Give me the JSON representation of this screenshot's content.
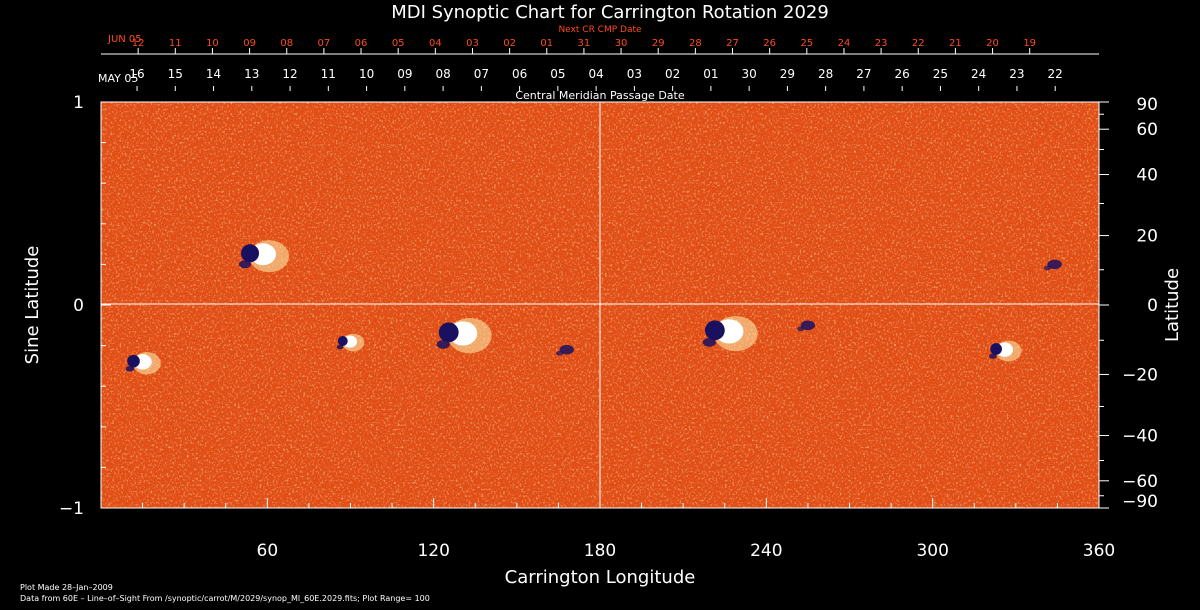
{
  "chart_data": {
    "type": "heatmap",
    "title": "MDI Synoptic Chart for Carrington Rotation 2029",
    "xlabel": "Carrington Longitude",
    "ylabel_left": "Sine Latitude",
    "ylabel_right": "Latitude",
    "xlim": [
      0,
      360
    ],
    "ylim": [
      -1,
      1
    ],
    "x_ticks": [
      60,
      120,
      180,
      240,
      300,
      360
    ],
    "y_left_ticks": [
      {
        "value": 1,
        "label": "1"
      },
      {
        "value": 0,
        "label": "0"
      },
      {
        "value": -1,
        "label": "−1"
      }
    ],
    "y_right_ticks": [
      90,
      60,
      40,
      20,
      0,
      -20,
      -40,
      -60,
      -90
    ],
    "y_right_tick_labels": [
      "90",
      "60",
      "40",
      "20",
      "0",
      "−20",
      "−40",
      "−60",
      "−90"
    ],
    "grid_lines": {
      "longitude": 180,
      "sine_latitude": 0
    },
    "top_axis": {
      "label": "Central Meridian Passage Date",
      "month_label": "MAY 05",
      "dates": [
        "16",
        "15",
        "14",
        "13",
        "12",
        "11",
        "10",
        "09",
        "08",
        "07",
        "06",
        "05",
        "04",
        "03",
        "02",
        "01",
        "30",
        "29",
        "28",
        "27",
        "26",
        "25",
        "24",
        "23",
        "22"
      ],
      "date_start_longitude": 13,
      "date_step": 13.8
    },
    "next_axis": {
      "label": "Next CR CMP Date",
      "month_label": "JUN 05",
      "dates": [
        "12",
        "11",
        "10",
        "09",
        "08",
        "07",
        "06",
        "05",
        "04",
        "03",
        "02",
        "01",
        "31",
        "30",
        "29",
        "28",
        "27",
        "26",
        "25",
        "24",
        "23",
        "22",
        "21",
        "20",
        "19"
      ],
      "date_start_longitude": 0,
      "date_step": 13.4
    },
    "colormap": {
      "background": "#e04a14",
      "positive": "#ffffff",
      "negative": "#1a1060"
    },
    "plot_range": 100,
    "active_regions": [
      {
        "lon": 57,
        "sinlat": 0.25,
        "polarity": "bipolar",
        "size": 1.0
      },
      {
        "lon": 14,
        "sinlat": -0.28,
        "polarity": "bipolar",
        "size": 0.7
      },
      {
        "lon": 89,
        "sinlat": -0.18,
        "polarity": "bipolar",
        "size": 0.55
      },
      {
        "lon": 129,
        "sinlat": -0.14,
        "polarity": "bipolar",
        "size": 1.1
      },
      {
        "lon": 168,
        "sinlat": -0.22,
        "polarity": "negative",
        "size": 0.6
      },
      {
        "lon": 225,
        "sinlat": -0.13,
        "polarity": "bipolar",
        "size": 1.1
      },
      {
        "lon": 255,
        "sinlat": -0.1,
        "polarity": "negative",
        "size": 0.6
      },
      {
        "lon": 325,
        "sinlat": -0.22,
        "polarity": "bipolar",
        "size": 0.65
      },
      {
        "lon": 344,
        "sinlat": 0.2,
        "polarity": "negative",
        "size": 0.6
      }
    ]
  },
  "footer": {
    "plot_made": "Plot Made 28–Jan–2009",
    "data_from": "Data from 60E – Line–of–Sight From /synoptic/carrot/M/2029/synop_Ml_60E.2029.fits; Plot Range=  100"
  }
}
